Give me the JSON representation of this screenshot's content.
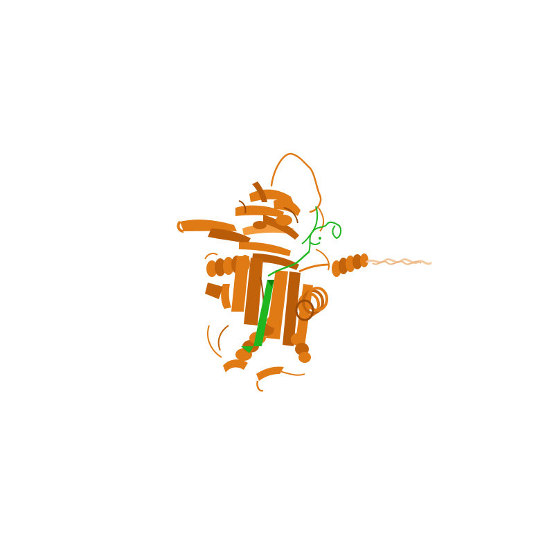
{
  "scene": {
    "background_color": "#ffffff",
    "main_chain_color": "#e07a14",
    "main_chain_shadow_color": "#9a4a06",
    "main_chain_highlight_color": "#f39a3c",
    "tail_helix_color": "#f3c9a0",
    "peptide_chain_color": "#1fb61f",
    "peptide_shadow_color": "#0f7f10",
    "style": "cartoon"
  }
}
